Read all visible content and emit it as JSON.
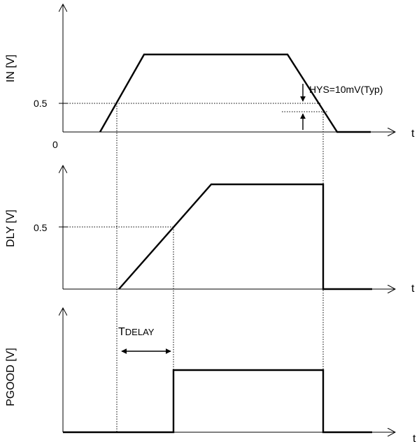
{
  "panels": {
    "in": {
      "ylabel": "IN [V]",
      "tick": "0.5",
      "origin": "0",
      "xlabel": "t"
    },
    "dly": {
      "ylabel": "DLY [V]",
      "tick": "0.5",
      "xlabel": "t"
    },
    "pgood": {
      "ylabel": "PGOOD [V]",
      "xlabel": "t"
    }
  },
  "annotations": {
    "hysteresis": "HYS=10mV(Typ)",
    "tdelay_main": "T",
    "tdelay_sub": "DELAY"
  }
}
